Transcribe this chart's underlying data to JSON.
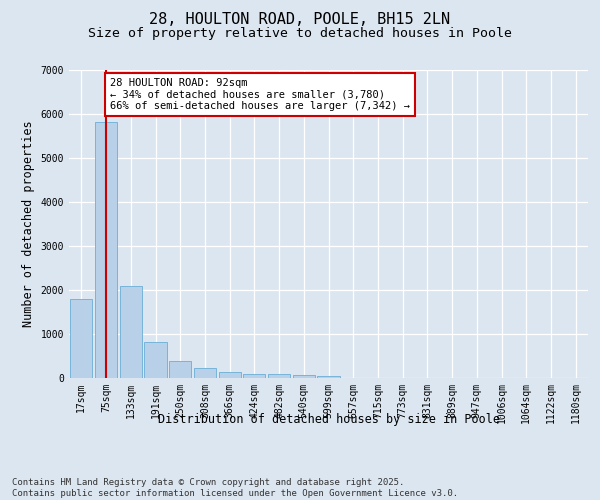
{
  "title": "28, HOULTON ROAD, POOLE, BH15 2LN",
  "subtitle": "Size of property relative to detached houses in Poole",
  "xlabel": "Distribution of detached houses by size in Poole",
  "ylabel": "Number of detached properties",
  "categories": [
    "17sqm",
    "75sqm",
    "133sqm",
    "191sqm",
    "250sqm",
    "308sqm",
    "366sqm",
    "424sqm",
    "482sqm",
    "540sqm",
    "599sqm",
    "657sqm",
    "715sqm",
    "773sqm",
    "831sqm",
    "889sqm",
    "947sqm",
    "1006sqm",
    "1064sqm",
    "1122sqm",
    "1180sqm"
  ],
  "values": [
    1780,
    5820,
    2090,
    810,
    370,
    210,
    120,
    90,
    70,
    55,
    45,
    0,
    0,
    0,
    0,
    0,
    0,
    0,
    0,
    0,
    0
  ],
  "bar_color": "#b8d0e8",
  "bar_edgecolor": "#6aaed6",
  "vline_x_index": 1,
  "vline_color": "#cc0000",
  "annotation_text": "28 HOULTON ROAD: 92sqm\n← 34% of detached houses are smaller (3,780)\n66% of semi-detached houses are larger (7,342) →",
  "annotation_box_facecolor": "#ffffff",
  "annotation_box_edgecolor": "#cc0000",
  "ylim": [
    0,
    7000
  ],
  "yticks": [
    0,
    1000,
    2000,
    3000,
    4000,
    5000,
    6000,
    7000
  ],
  "bg_color": "#dce6f0",
  "footer_line1": "Contains HM Land Registry data © Crown copyright and database right 2025.",
  "footer_line2": "Contains public sector information licensed under the Open Government Licence v3.0.",
  "title_fontsize": 11,
  "subtitle_fontsize": 9.5,
  "annot_fontsize": 7.5,
  "tick_fontsize": 7,
  "ylabel_fontsize": 8.5,
  "xlabel_fontsize": 8.5,
  "footer_fontsize": 6.5
}
